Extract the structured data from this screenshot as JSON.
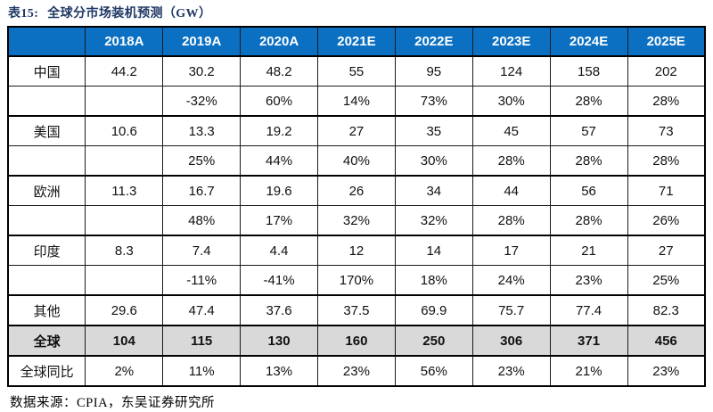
{
  "title": {
    "prefix": "表15:",
    "text": "全球分市场装机预测（GW）"
  },
  "colors": {
    "header_blue": "#0B70C2",
    "total_row_gray": "#D9D9D9",
    "title_navy": "#1F3864",
    "border_black": "#000000"
  },
  "table": {
    "columns": [
      "",
      "2018A",
      "2019A",
      "2020A",
      "2021E",
      "2022E",
      "2023E",
      "2024E",
      "2025E"
    ],
    "rows": [
      {
        "label": "中国",
        "style": "value",
        "sep": true,
        "cells": [
          "44.2",
          "30.2",
          "48.2",
          "55",
          "95",
          "124",
          "158",
          "202"
        ]
      },
      {
        "label": "",
        "style": "growth",
        "sep": false,
        "cells": [
          "",
          "-32%",
          "60%",
          "14%",
          "73%",
          "30%",
          "28%",
          "28%"
        ]
      },
      {
        "label": "美国",
        "style": "value",
        "sep": true,
        "cells": [
          "10.6",
          "13.3",
          "19.2",
          "27",
          "35",
          "45",
          "57",
          "73"
        ]
      },
      {
        "label": "",
        "style": "growth",
        "sep": false,
        "cells": [
          "",
          "25%",
          "44%",
          "40%",
          "30%",
          "28%",
          "28%",
          "28%"
        ]
      },
      {
        "label": "欧洲",
        "style": "value",
        "sep": true,
        "cells": [
          "11.3",
          "16.7",
          "19.6",
          "26",
          "34",
          "44",
          "56",
          "71"
        ]
      },
      {
        "label": "",
        "style": "growth",
        "sep": false,
        "cells": [
          "",
          "48%",
          "17%",
          "32%",
          "32%",
          "28%",
          "28%",
          "26%"
        ]
      },
      {
        "label": "印度",
        "style": "value",
        "sep": true,
        "cells": [
          "8.3",
          "7.4",
          "4.4",
          "12",
          "14",
          "17",
          "21",
          "27"
        ]
      },
      {
        "label": "",
        "style": "growth",
        "sep": false,
        "cells": [
          "",
          "-11%",
          "-41%",
          "170%",
          "18%",
          "24%",
          "23%",
          "25%"
        ]
      },
      {
        "label": "其他",
        "style": "value",
        "sep": true,
        "cells": [
          "29.6",
          "47.4",
          "37.6",
          "37.5",
          "69.9",
          "75.7",
          "77.4",
          "82.3"
        ]
      },
      {
        "label": "全球",
        "style": "total",
        "sep": true,
        "cells": [
          "104",
          "115",
          "130",
          "160",
          "250",
          "306",
          "371",
          "456"
        ]
      },
      {
        "label": "全球同比",
        "style": "yoy",
        "sep": true,
        "cells": [
          "2%",
          "11%",
          "13%",
          "23%",
          "56%",
          "23%",
          "21%",
          "23%"
        ]
      }
    ]
  },
  "footer": {
    "source_text": "数据来源：CPIA，东吴证券研究所"
  }
}
